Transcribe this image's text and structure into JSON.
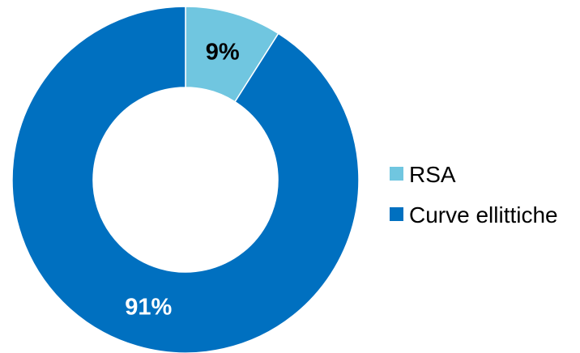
{
  "chart_data": {
    "type": "pie",
    "variant": "donut",
    "title": "",
    "slices": [
      {
        "label": "RSA",
        "value": 9,
        "display": "9%",
        "color": "#70C6E0",
        "label_color": "#000000"
      },
      {
        "label": "Curve ellittiche",
        "value": 91,
        "display": "91%",
        "color": "#0070C0",
        "label_color": "#ffffff"
      }
    ],
    "legend_position": "right"
  }
}
